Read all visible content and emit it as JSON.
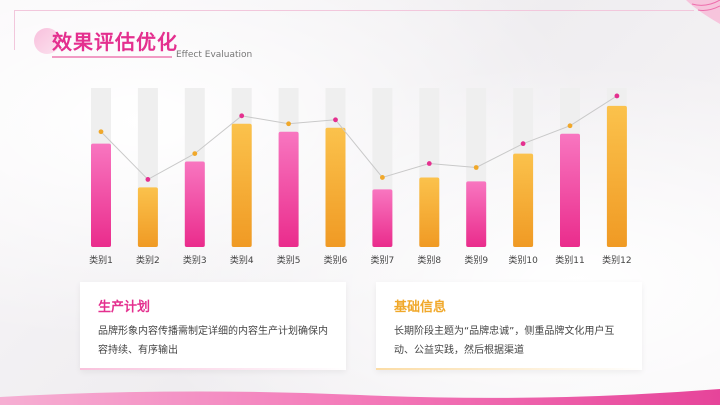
{
  "header": {
    "title_cn": "效果评估优化",
    "title_en": "Effect Evaluation"
  },
  "colors": {
    "pink": "#ee3a9a",
    "pink_light": "#f876c0",
    "orange": "#f3a62a",
    "orange_light": "#fbc24c",
    "track": "#efefef",
    "line": "#c9c9c9",
    "dot_pink": "#e4308f",
    "dot_orange": "#f0a82a"
  },
  "chart_data": {
    "type": "bar",
    "categories": [
      "类别1",
      "类别2",
      "类别3",
      "类别4",
      "类别5",
      "类别6",
      "类别7",
      "类别8",
      "类别9",
      "类别10",
      "类别11",
      "类别12"
    ],
    "series": [
      {
        "values": [
          5.2,
          3.0,
          4.3,
          6.2,
          5.8,
          6.0,
          2.9,
          3.5,
          3.3,
          4.7,
          5.7,
          7.1
        ]
      },
      {
        "values": [
          5.8,
          3.4,
          4.7,
          6.6,
          6.2,
          6.4,
          3.5,
          4.2,
          4.0,
          5.2,
          6.1,
          7.6
        ]
      }
    ],
    "bar_colors": [
      "pink",
      "orange",
      "pink",
      "orange",
      "pink",
      "orange",
      "pink",
      "orange",
      "pink",
      "orange",
      "pink",
      "orange"
    ],
    "ylim": [
      0,
      8
    ],
    "grid": false,
    "legend": "none"
  },
  "cards": [
    {
      "title": "生产计划",
      "body": "品牌形象内容传播需制定详细的内容生产计划确保内容持续、有序输出"
    },
    {
      "title": "基础信息",
      "body": "长期阶段主题为“品牌忠诚”，侧重品牌文化用户互动、公益实践，然后根据渠道"
    }
  ]
}
